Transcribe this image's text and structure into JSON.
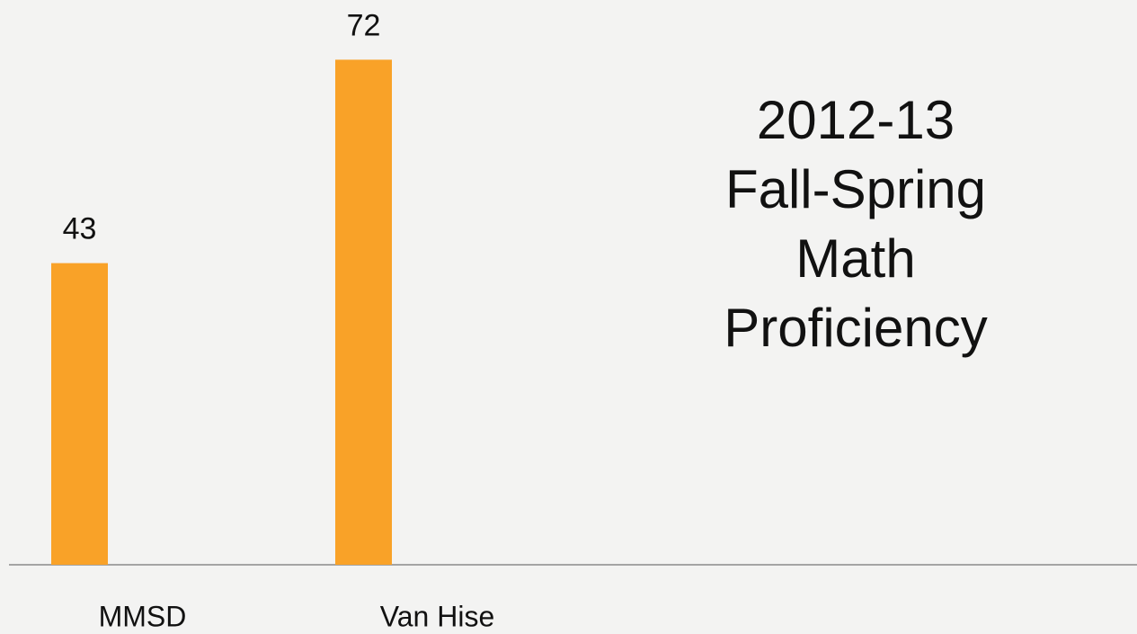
{
  "chart_data": {
    "type": "bar",
    "title": [
      "2012-13",
      "Fall-Spring",
      "Math",
      "Proficiency"
    ],
    "categories": [
      "MMSD",
      "Van Hise"
    ],
    "values": [
      43,
      72
    ],
    "color": "#f9a228",
    "ylim": [
      0,
      80
    ]
  }
}
